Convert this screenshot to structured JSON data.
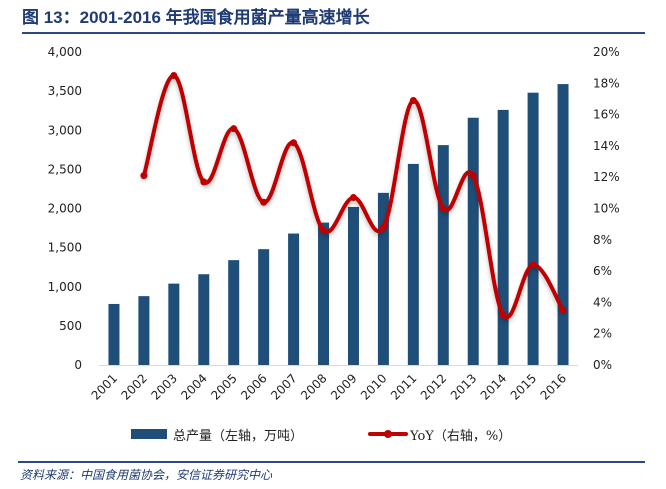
{
  "title": "图 13：2001-2016 年我国食用菌产量高速增长",
  "source": "资料来源：中国食用菌协会，安信证券研究中心",
  "colors": {
    "bar": "#1f4e79",
    "line": "#c00000",
    "title": "#1f3b73",
    "rule": "#2a4a86"
  },
  "chart_data": {
    "type": "bar+line",
    "title": "图 13：2001-2016 年我国食用菌产量高速增长",
    "categories": [
      "2001",
      "2002",
      "2003",
      "2004",
      "2005",
      "2006",
      "2007",
      "2008",
      "2009",
      "2010",
      "2011",
      "2012",
      "2013",
      "2014",
      "2015",
      "2016"
    ],
    "series": [
      {
        "name": "总产量（左轴，万吨）",
        "type": "bar",
        "axis": "left",
        "values": [
          780,
          880,
          1040,
          1160,
          1340,
          1480,
          1680,
          1820,
          2020,
          2200,
          2570,
          2810,
          3160,
          3260,
          3480,
          3590
        ]
      },
      {
        "name": "YoY（右轴，%）",
        "type": "line",
        "axis": "right",
        "values": [
          null,
          12.1,
          18.5,
          11.7,
          15.1,
          10.4,
          14.2,
          8.6,
          10.7,
          8.8,
          16.9,
          10.0,
          12.1,
          3.2,
          6.4,
          3.5
        ]
      }
    ],
    "y_left": {
      "ylim": [
        0,
        4000
      ],
      "ticks": [
        0,
        500,
        1000,
        1500,
        2000,
        2500,
        3000,
        3500,
        4000
      ],
      "tick_labels": [
        "0",
        "500",
        "1,000",
        "1,500",
        "2,000",
        "2,500",
        "3,000",
        "3,500",
        "4,000"
      ]
    },
    "y_right": {
      "ylim": [
        0,
        20
      ],
      "ticks": [
        0,
        2,
        4,
        6,
        8,
        10,
        12,
        14,
        16,
        18,
        20
      ],
      "tick_labels": [
        "0%",
        "2%",
        "4%",
        "6%",
        "8%",
        "10%",
        "12%",
        "14%",
        "16%",
        "18%",
        "20%"
      ]
    },
    "xlabel": "",
    "ylabel": "",
    "grid": false,
    "legend": {
      "placement": "bottom",
      "entries": [
        "总产量（左轴，万吨）",
        "YoY（右轴，%）"
      ]
    }
  }
}
